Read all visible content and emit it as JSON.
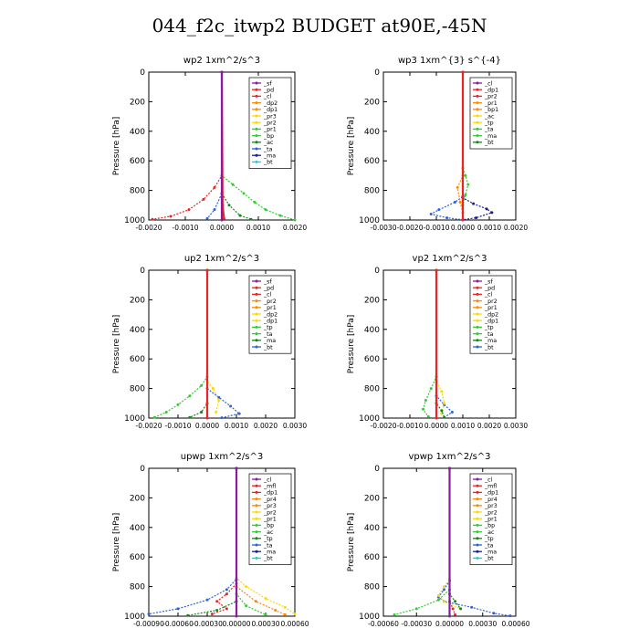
{
  "page": {
    "title": "044_f2c_itwp2  BUDGET at90E,-45N"
  },
  "colors": {
    "red": "#ee2222",
    "darkred": "#b0103a",
    "orange": "#ff8a00",
    "yellow": "#ffd800",
    "green": "#33cc33",
    "darkgreen": "#118811",
    "blue": "#2d62d8",
    "navy": "#1a1a9c",
    "cyan": "#22cce0",
    "purple": "#8a1aa0",
    "black": "#000000"
  },
  "chart_data": [
    {
      "id": "wp2",
      "type": "line",
      "title": "wp2  1xm^2/s^3",
      "ylabel": "Pressure [hPa]",
      "xlim": [
        -0.002,
        0.002
      ],
      "ylim": [
        1000,
        0
      ],
      "xticks": [
        -0.002,
        -0.001,
        0,
        0.001,
        0.002
      ],
      "xtick_labels": [
        "-0.0020",
        "-0.0010",
        "0.0000",
        "0.0010",
        "0.0020"
      ],
      "yticks": [
        0,
        200,
        400,
        600,
        800,
        1000
      ],
      "legend": [
        "_sf",
        "_pd",
        "_cl",
        "_dp2",
        "_dp1",
        "_pr3",
        "_pr2",
        "_pr1",
        "_bp",
        "_ac",
        "_ta",
        "_ma",
        "_bt"
      ],
      "series": [
        {
          "name": "_pr1",
          "color": "green",
          "points": [
            [
              0,
              0
            ],
            [
              0,
              700
            ],
            [
              0.0003,
              760
            ],
            [
              0.0006,
              820
            ],
            [
              0.0009,
              880
            ],
            [
              0.0012,
              930
            ],
            [
              0.0016,
              970
            ],
            [
              0.002,
              1000
            ]
          ]
        },
        {
          "name": "_dp2",
          "color": "red",
          "points": [
            [
              0,
              0
            ],
            [
              0,
              700
            ],
            [
              -0.0002,
              780
            ],
            [
              -0.0005,
              860
            ],
            [
              -0.0009,
              930
            ],
            [
              -0.0014,
              975
            ],
            [
              -0.0019,
              995
            ]
          ]
        },
        {
          "name": "_ac",
          "color": "darkgreen",
          "points": [
            [
              0,
              0
            ],
            [
              0,
              820
            ],
            [
              0.0002,
              900
            ],
            [
              0.0005,
              970
            ],
            [
              0.0008,
              995
            ]
          ]
        },
        {
          "name": "_bp",
          "color": "blue",
          "points": [
            [
              0,
              0
            ],
            [
              0,
              820
            ],
            [
              -0.0002,
              930
            ],
            [
              -0.0004,
              990
            ]
          ]
        },
        {
          "name": "_cl",
          "color": "red",
          "points": [
            [
              0,
              0
            ],
            [
              2e-05,
              900
            ],
            [
              6e-05,
              990
            ]
          ]
        },
        {
          "name": "_pd",
          "color": "purple",
          "points": [
            [
              0,
              0
            ],
            [
              0,
              1000
            ]
          ]
        }
      ]
    },
    {
      "id": "wp3",
      "type": "line",
      "title": "wp3  1xm^{3} s^{-4}",
      "ylabel": "Pressure [hPa]",
      "xlim": [
        -0.003,
        0.002
      ],
      "ylim": [
        1000,
        0
      ],
      "xticks": [
        -0.003,
        -0.002,
        -0.001,
        0,
        0.001,
        0.002
      ],
      "xtick_labels": [
        "-0.0030",
        "-0.0020",
        "-0.0010",
        "0.0000",
        "0.0010",
        "0.0020"
      ],
      "yticks": [
        0,
        200,
        400,
        600,
        800,
        1000
      ],
      "legend": [
        "_cl",
        "_dp1",
        "_pr2",
        "_pr1",
        "_bp1",
        "_ac",
        "_tp",
        "_ta",
        "_ma",
        "_bt"
      ],
      "series": [
        {
          "name": "_bp1",
          "color": "blue",
          "points": [
            [
              0,
              0
            ],
            [
              0,
              840
            ],
            [
              -0.0003,
              880
            ],
            [
              -0.0009,
              930
            ],
            [
              -0.0012,
              960
            ],
            [
              -0.0006,
              985
            ],
            [
              0,
              998
            ]
          ]
        },
        {
          "name": "_tp",
          "color": "navy",
          "points": [
            [
              0,
              0
            ],
            [
              0,
              850
            ],
            [
              0.0004,
              890
            ],
            [
              0.0009,
              925
            ],
            [
              0.0011,
              950
            ],
            [
              0.0005,
              985
            ],
            [
              0,
              998
            ]
          ]
        },
        {
          "name": "_ac",
          "color": "green",
          "points": [
            [
              0,
              0
            ],
            [
              0,
              650
            ],
            [
              0.0001,
              700
            ],
            [
              0.0002,
              760
            ],
            [
              0.0001,
              830
            ],
            [
              0,
              900
            ]
          ]
        },
        {
          "name": "_pr2",
          "color": "orange",
          "points": [
            [
              0,
              0
            ],
            [
              0,
              700
            ],
            [
              -0.0002,
              780
            ],
            [
              -0.0001,
              880
            ],
            [
              0,
              950
            ]
          ]
        },
        {
          "name": "_cl",
          "color": "red",
          "points": [
            [
              0,
              0
            ],
            [
              0,
              1000
            ]
          ]
        }
      ]
    },
    {
      "id": "up2",
      "type": "line",
      "title": "up2  1xm^2/s^3",
      "ylabel": "Pressure [hPa]",
      "xlim": [
        -0.002,
        0.003
      ],
      "ylim": [
        1000,
        0
      ],
      "xticks": [
        -0.002,
        -0.001,
        0,
        0.001,
        0.002,
        0.003
      ],
      "xtick_labels": [
        "-0.0020",
        "-0.0010",
        "0.0000",
        "0.0010",
        "0.0020",
        "0.0030"
      ],
      "yticks": [
        0,
        200,
        400,
        600,
        800,
        1000
      ],
      "legend": [
        "_sf",
        "_pd",
        "_cl",
        "_pr2",
        "_pr1",
        "_dp2",
        "_dp1",
        "_tp",
        "_ta",
        "_ma",
        "_bt"
      ],
      "series": [
        {
          "name": "_dp2",
          "color": "green",
          "points": [
            [
              0,
              0
            ],
            [
              0,
              720
            ],
            [
              -0.0002,
              780
            ],
            [
              -0.0006,
              850
            ],
            [
              -0.001,
              910
            ],
            [
              -0.0014,
              960
            ],
            [
              -0.0018,
              995
            ]
          ]
        },
        {
          "name": "_tp",
          "color": "blue",
          "points": [
            [
              0,
              0
            ],
            [
              0,
              800
            ],
            [
              0.0004,
              860
            ],
            [
              0.0008,
              920
            ],
            [
              0.0011,
              970
            ],
            [
              0.0005,
              998
            ]
          ]
        },
        {
          "name": "_pr2",
          "color": "yellow",
          "points": [
            [
              0,
              0
            ],
            [
              0,
              750
            ],
            [
              0.0002,
              800
            ],
            [
              0.0004,
              880
            ],
            [
              0.0003,
              960
            ]
          ]
        },
        {
          "name": "_ta",
          "color": "darkgreen",
          "points": [
            [
              0,
              0
            ],
            [
              0,
              900
            ],
            [
              -0.0002,
              960
            ],
            [
              -0.0006,
              995
            ]
          ]
        },
        {
          "name": "_cl",
          "color": "red",
          "points": [
            [
              0,
              0
            ],
            [
              0,
              1000
            ]
          ]
        }
      ]
    },
    {
      "id": "vp2",
      "type": "line",
      "title": "vp2  1xm^2/s^3",
      "ylabel": "Pressure [hPa]",
      "xlim": [
        -0.002,
        0.003
      ],
      "ylim": [
        1000,
        0
      ],
      "xticks": [
        -0.002,
        -0.001,
        0,
        0.001,
        0.002,
        0.003
      ],
      "xtick_labels": [
        "-0.0020",
        "-0.0010",
        "0.0000",
        "0.0010",
        "0.0020",
        "0.0030"
      ],
      "yticks": [
        0,
        200,
        400,
        600,
        800,
        1000
      ],
      "legend": [
        "_sf",
        "_pd",
        "_cl",
        "_pr2",
        "_pr1",
        "_dp2",
        "_dp1",
        "_tp",
        "_ta",
        "_ma",
        "_bt"
      ],
      "series": [
        {
          "name": "_dp2",
          "color": "green",
          "points": [
            [
              0,
              0
            ],
            [
              0,
              720
            ],
            [
              -0.0002,
              800
            ],
            [
              -0.0004,
              880
            ],
            [
              -0.0005,
              940
            ],
            [
              -0.0003,
              990
            ]
          ]
        },
        {
          "name": "_tp",
          "color": "blue",
          "points": [
            [
              0,
              0
            ],
            [
              0,
              850
            ],
            [
              0.0003,
              910
            ],
            [
              0.0006,
              960
            ],
            [
              0.0003,
              995
            ]
          ]
        },
        {
          "name": "_pr2",
          "color": "yellow",
          "points": [
            [
              0,
              0
            ],
            [
              0,
              750
            ],
            [
              0.0002,
              820
            ],
            [
              0.0003,
              900
            ],
            [
              0.0002,
              970
            ]
          ]
        },
        {
          "name": "_ta",
          "color": "darkgreen",
          "points": [
            [
              0,
              0
            ],
            [
              0,
              900
            ],
            [
              0.0002,
              950
            ],
            [
              0.0003,
              995
            ]
          ]
        },
        {
          "name": "_cl",
          "color": "red",
          "points": [
            [
              0,
              0
            ],
            [
              0,
              1000
            ]
          ]
        }
      ]
    },
    {
      "id": "upwp",
      "type": "line",
      "title": "upwp  1xm^2/s^3",
      "ylabel": "Pressure [hPa]",
      "xlim": [
        -0.0009,
        0.0006
      ],
      "ylim": [
        1000,
        0
      ],
      "xticks": [
        -0.0009,
        -0.0006,
        -0.0003,
        0,
        0.0003,
        0.0006
      ],
      "xtick_labels": [
        "-0.00090",
        "-0.00060",
        "-0.00030",
        "0.00000",
        "0.00030",
        "0.00060"
      ],
      "yticks": [
        0,
        200,
        400,
        600,
        800,
        1000
      ],
      "legend": [
        "_cl",
        "_mfl",
        "_dp1",
        "_pr4",
        "_pr3",
        "_pr2",
        "_pr1",
        "_bp",
        "_ac",
        "_tp",
        "_ta",
        "_ma",
        "_bt"
      ],
      "series": [
        {
          "name": "_tp",
          "color": "blue",
          "points": [
            [
              0,
              0
            ],
            [
              0,
              750
            ],
            [
              -0.0001,
              820
            ],
            [
              -0.0003,
              890
            ],
            [
              -0.0006,
              950
            ],
            [
              -0.0009,
              985
            ]
          ]
        },
        {
          "name": "_pr1",
          "color": "yellow",
          "points": [
            [
              0,
              0
            ],
            [
              0,
              740
            ],
            [
              0.0001,
              800
            ],
            [
              0.0003,
              880
            ],
            [
              0.0005,
              940
            ],
            [
              0.0006,
              985
            ]
          ]
        },
        {
          "name": "_pr2",
          "color": "orange",
          "points": [
            [
              0,
              0
            ],
            [
              0,
              800
            ],
            [
              0.0002,
              900
            ],
            [
              0.0004,
              960
            ],
            [
              0.0005,
              990
            ]
          ]
        },
        {
          "name": "_dp1",
          "color": "red",
          "points": [
            [
              0,
              0
            ],
            [
              0,
              780
            ],
            [
              -0.0001,
              850
            ],
            [
              -0.0002,
              900
            ],
            [
              -0.0001,
              950
            ],
            [
              -0.00025,
              985
            ]
          ]
        },
        {
          "name": "_bp",
          "color": "green",
          "points": [
            [
              0,
              0
            ],
            [
              0,
              850
            ],
            [
              0.0001,
              930
            ],
            [
              0.0003,
              990
            ]
          ]
        },
        {
          "name": "_ta",
          "color": "darkgreen",
          "points": [
            [
              0,
              0
            ],
            [
              0,
              900
            ],
            [
              -0.0002,
              960
            ],
            [
              -0.0005,
              995
            ]
          ]
        },
        {
          "name": "_cl",
          "color": "purple",
          "points": [
            [
              0,
              0
            ],
            [
              0,
              1000
            ]
          ]
        }
      ]
    },
    {
      "id": "vpwp",
      "type": "line",
      "title": "vpwp  1xm^2/s^3",
      "ylabel": "Pressure [hPa]",
      "xlim": [
        -0.0006,
        0.0006
      ],
      "ylim": [
        1000,
        0
      ],
      "xticks": [
        -0.0006,
        -0.0003,
        0,
        0.0003,
        0.0006
      ],
      "xtick_labels": [
        "-0.00060",
        "-0.00030",
        "0.00000",
        "0.00030",
        "0.00060"
      ],
      "yticks": [
        0,
        200,
        400,
        600,
        800,
        1000
      ],
      "legend": [
        "_cl",
        "_mfl",
        "_dp1",
        "_pr4",
        "_pr3",
        "_pr2",
        "_pr1",
        "_bp",
        "_ac",
        "_tp",
        "_ta",
        "_ma",
        "_bt"
      ],
      "series": [
        {
          "name": "_tp",
          "color": "blue",
          "points": [
            [
              0,
              0
            ],
            [
              0,
              760
            ],
            [
              -5e-05,
              820
            ],
            [
              -0.0001,
              870
            ],
            [
              -5e-05,
              900
            ],
            [
              0.0002,
              940
            ],
            [
              0.0004,
              980
            ],
            [
              0.00055,
              998
            ]
          ]
        },
        {
          "name": "_bp",
          "color": "green",
          "points": [
            [
              0,
              0
            ],
            [
              0,
              820
            ],
            [
              -0.0001,
              890
            ],
            [
              -0.0003,
              950
            ],
            [
              -0.0005,
              990
            ]
          ]
        },
        {
          "name": "_pr1",
          "color": "yellow",
          "points": [
            [
              0,
              0
            ],
            [
              0,
              750
            ],
            [
              -5e-05,
              800
            ],
            [
              -0.0001,
              860
            ],
            [
              -5e-05,
              900
            ],
            [
              0.0001,
              950
            ]
          ]
        },
        {
          "name": "_dp1",
          "color": "red",
          "points": [
            [
              0,
              0
            ],
            [
              0,
              900
            ],
            [
              3e-05,
              950
            ],
            [
              5e-05,
              990
            ]
          ]
        },
        {
          "name": "_ta",
          "color": "darkgreen",
          "points": [
            [
              0,
              0
            ],
            [
              0,
              850
            ],
            [
              5e-05,
              900
            ],
            [
              0.0001,
              950
            ]
          ]
        },
        {
          "name": "_cl",
          "color": "purple",
          "points": [
            [
              0,
              0
            ],
            [
              0,
              1000
            ]
          ]
        }
      ]
    }
  ]
}
